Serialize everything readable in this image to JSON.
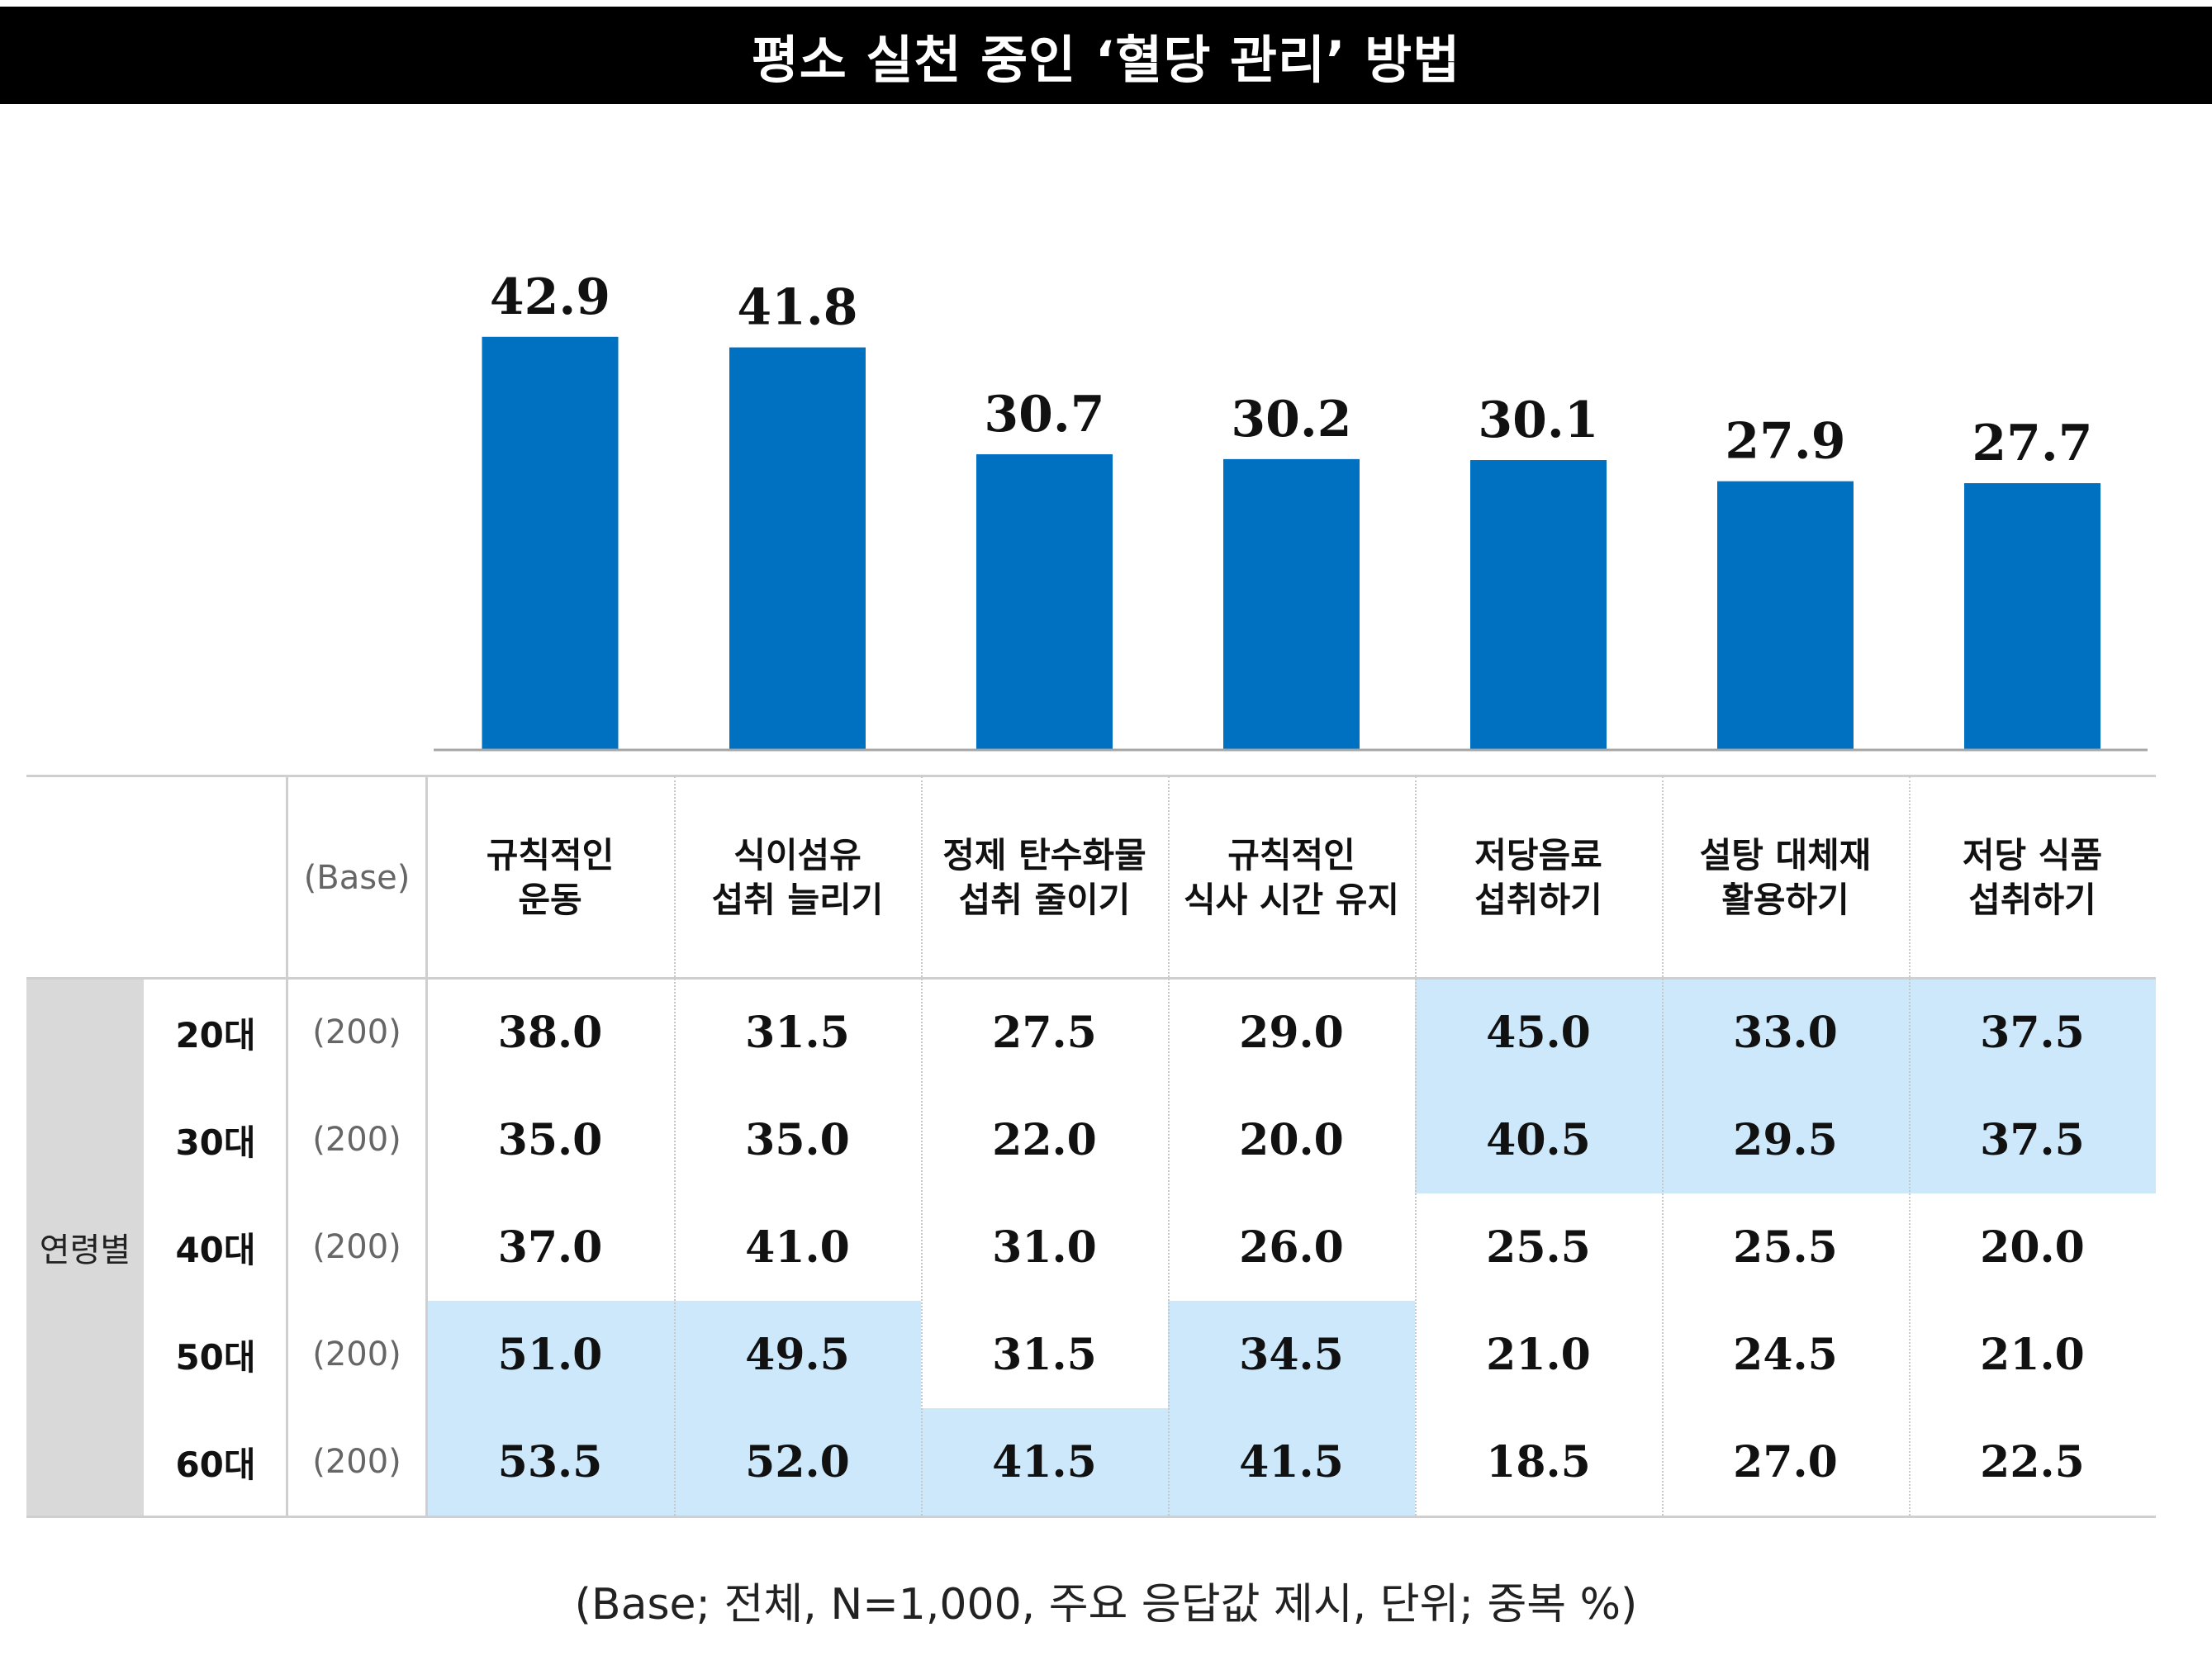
{
  "title": "평소 실천 중인 ‘혈당 관리’ 방법",
  "colors": {
    "bar": "#0070c0",
    "highlight": "#cce8fa",
    "title_bg": "#000000"
  },
  "chart_data": {
    "type": "bar",
    "title": "평소 실천 중인 ‘혈당 관리’ 방법",
    "categories": [
      "규칙적인 운동",
      "식이섬유 섭취 늘리기",
      "정제 탄수화물 섭취 줄이기",
      "규칙적인 식사 시간 유지",
      "저당음료 섭취하기",
      "설탕 대체재 활용하기",
      "저당 식품 섭취하기"
    ],
    "values": [
      42.9,
      41.8,
      30.7,
      30.2,
      30.1,
      27.9,
      27.7
    ],
    "value_labels": [
      "42.9",
      "41.8",
      "30.7",
      "30.2",
      "30.1",
      "27.9",
      "27.7"
    ],
    "ylim": [
      0,
      50
    ],
    "grid": false
  },
  "table": {
    "base_header": "(Base)",
    "group_label": "연령별",
    "columns": [
      {
        "line1": "규칙적인",
        "line2": "운동"
      },
      {
        "line1": "식이섬유",
        "line2": "섭취 늘리기"
      },
      {
        "line1": "정제 탄수화물",
        "line2": "섭취 줄이기"
      },
      {
        "line1": "규칙적인",
        "line2": "식사 시간 유지"
      },
      {
        "line1": "저당음료",
        "line2": "섭취하기"
      },
      {
        "line1": "설탕 대체재",
        "line2": "활용하기"
      },
      {
        "line1": "저당 식품",
        "line2": "섭취하기"
      }
    ],
    "rows": [
      {
        "label": "20대",
        "base": "(200)",
        "values": [
          "38.0",
          "31.5",
          "27.5",
          "29.0",
          "45.0",
          "33.0",
          "37.5"
        ],
        "highlight": [
          false,
          false,
          false,
          false,
          true,
          true,
          true
        ]
      },
      {
        "label": "30대",
        "base": "(200)",
        "values": [
          "35.0",
          "35.0",
          "22.0",
          "20.0",
          "40.5",
          "29.5",
          "37.5"
        ],
        "highlight": [
          false,
          false,
          false,
          false,
          true,
          true,
          true
        ]
      },
      {
        "label": "40대",
        "base": "(200)",
        "values": [
          "37.0",
          "41.0",
          "31.0",
          "26.0",
          "25.5",
          "25.5",
          "20.0"
        ],
        "highlight": [
          false,
          false,
          false,
          false,
          false,
          false,
          false
        ]
      },
      {
        "label": "50대",
        "base": "(200)",
        "values": [
          "51.0",
          "49.5",
          "31.5",
          "34.5",
          "21.0",
          "24.5",
          "21.0"
        ],
        "highlight": [
          true,
          true,
          false,
          true,
          false,
          false,
          false
        ]
      },
      {
        "label": "60대",
        "base": "(200)",
        "values": [
          "53.5",
          "52.0",
          "41.5",
          "41.5",
          "18.5",
          "27.0",
          "22.5"
        ],
        "highlight": [
          true,
          true,
          true,
          true,
          false,
          false,
          false
        ]
      }
    ]
  },
  "footnote": "(Base; 전체, N=1,000, 주요 응답값 제시, 단위; 중복 %)"
}
